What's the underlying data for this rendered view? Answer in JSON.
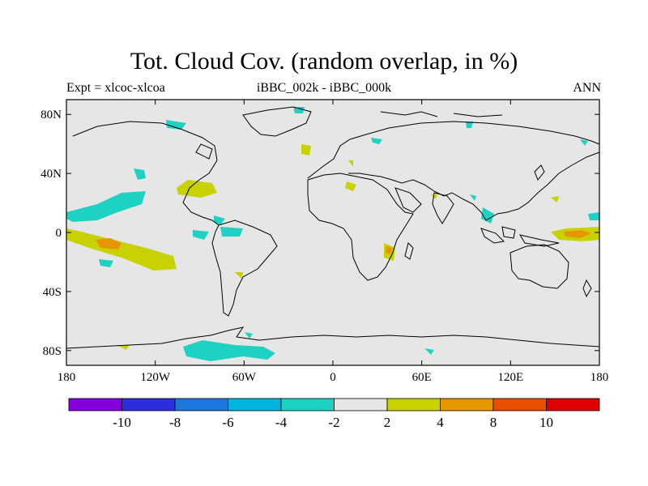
{
  "title": "Tot. Cloud Cov. (random overlap, in %)",
  "left_label": "Expt = xlcoc-xlcoa",
  "center_label": "iBBC_002k - iBBC_000k",
  "right_label": "ANN",
  "lat_ticks": [
    {
      "label": "80N",
      "lat": 80
    },
    {
      "label": "40N",
      "lat": 40
    },
    {
      "label": "0",
      "lat": 0
    },
    {
      "label": "40S",
      "lat": -40
    },
    {
      "label": "80S",
      "lat": -80
    }
  ],
  "lon_ticks": [
    {
      "label": "180",
      "lon": -180
    },
    {
      "label": "120W",
      "lon": -120
    },
    {
      "label": "60W",
      "lon": -60
    },
    {
      "label": "0",
      "lon": 0
    },
    {
      "label": "60E",
      "lon": 60
    },
    {
      "label": "120E",
      "lon": 120
    },
    {
      "label": "180",
      "lon": 180
    }
  ],
  "colorbar": {
    "colors": [
      "#8200dc",
      "#2d2ddc",
      "#1e78dc",
      "#00b4dc",
      "#1ed2c3",
      "#e6e6e6",
      "#c8d200",
      "#e69600",
      "#e65000",
      "#dc0000"
    ],
    "labels": [
      "-10",
      "-8",
      "-6",
      "-4",
      "-2",
      "2",
      "4",
      "8",
      "10"
    ]
  },
  "colors": {
    "land_background": "#e6e6e6",
    "coastline": "#000000"
  }
}
